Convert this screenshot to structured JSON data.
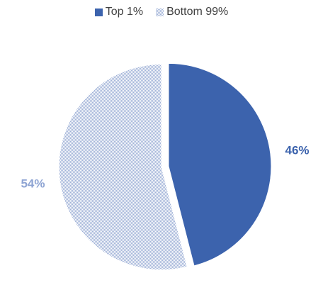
{
  "chart_data": {
    "type": "pie",
    "series": [
      {
        "name": "Top 1%",
        "value": 46,
        "label": "46%",
        "color": "#3c63ad",
        "fill": "solid"
      },
      {
        "name": "Bottom 99%",
        "value": 54,
        "label": "54%",
        "color": "#9fb1d7",
        "fill": "pattern",
        "label_color": "#8ea4d3"
      }
    ],
    "legend_position": "top",
    "exploded": true
  }
}
